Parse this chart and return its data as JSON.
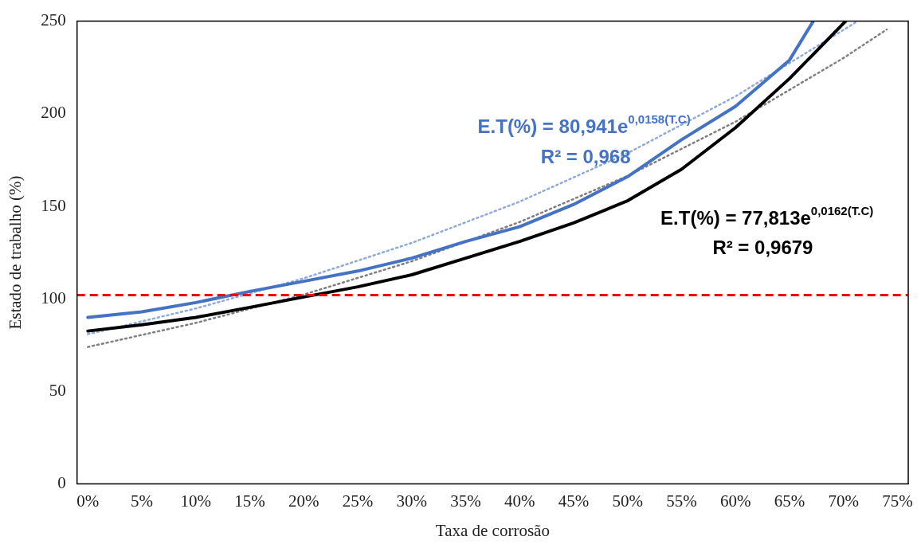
{
  "chart_data": {
    "type": "line",
    "xlabel": "Taxa de corrosão",
    "ylabel": "Estado de trabalho (%)",
    "xlim": [
      -1,
      76
    ],
    "xticks": [
      {
        "value": 0,
        "label": "0%"
      },
      {
        "value": 5,
        "label": "5%"
      },
      {
        "value": 10,
        "label": "10%"
      },
      {
        "value": 15,
        "label": "15%"
      },
      {
        "value": 20,
        "label": "20%"
      },
      {
        "value": 25,
        "label": "25%"
      },
      {
        "value": 30,
        "label": "30%"
      },
      {
        "value": 35,
        "label": "35%"
      },
      {
        "value": 40,
        "label": "40%"
      },
      {
        "value": 45,
        "label": "45%"
      },
      {
        "value": 50,
        "label": "50%"
      },
      {
        "value": 55,
        "label": "55%"
      },
      {
        "value": 60,
        "label": "60%"
      },
      {
        "value": 65,
        "label": "65%"
      },
      {
        "value": 70,
        "label": "70%"
      },
      {
        "value": 75,
        "label": "75%"
      }
    ],
    "ylim": [
      0,
      250
    ],
    "yticks": [
      0,
      50,
      100,
      150,
      200,
      250
    ],
    "grid": false,
    "legend": false,
    "marker": "none",
    "series": [
      {
        "color": "#4472c4",
        "x": [
          0,
          5,
          10,
          15,
          20,
          25,
          30,
          35,
          40,
          45,
          50,
          55,
          60,
          65,
          67.2
        ],
        "values": [
          90,
          93,
          98,
          104,
          109.5,
          115,
          122,
          131,
          139,
          151,
          166,
          186,
          204,
          229,
          250
        ]
      },
      {
        "color": "#000000",
        "x": [
          0,
          5,
          10,
          15,
          20,
          25,
          30,
          35,
          40,
          45,
          50,
          55,
          60,
          65,
          70.2
        ],
        "values": [
          82.6,
          86,
          90,
          95.4,
          101,
          106.5,
          113,
          122,
          131,
          141,
          153,
          170,
          192.5,
          219,
          250
        ]
      },
      {
        "color": "#8eaadb",
        "line_style": "dotted",
        "x": [
          0,
          10,
          20,
          30,
          40,
          50,
          60,
          70,
          71.3
        ],
        "values": [
          80.9,
          94.8,
          111.1,
          130.2,
          152.5,
          178.7,
          209.4,
          245.3,
          250
        ]
      },
      {
        "color": "#7f7f7f",
        "line_style": "dotted",
        "x": [
          0,
          10,
          20,
          30,
          40,
          50,
          60,
          70,
          74
        ],
        "values": [
          74,
          87,
          102.3,
          120.3,
          141.5,
          166.4,
          195.7,
          230.1,
          245.5
        ]
      }
    ],
    "ref_lines": [
      {
        "axis": "y",
        "value": 102,
        "color": "#ff0000",
        "line_style": "dashed"
      }
    ],
    "annotations": [
      "E.T(%) = 80,941e$^{0,0158(T.C)}$",
      "R² = 0,968",
      "E.T(%) = 77,813e$^{0,0162(T.C)}$",
      "R² = 0,9679"
    ]
  }
}
